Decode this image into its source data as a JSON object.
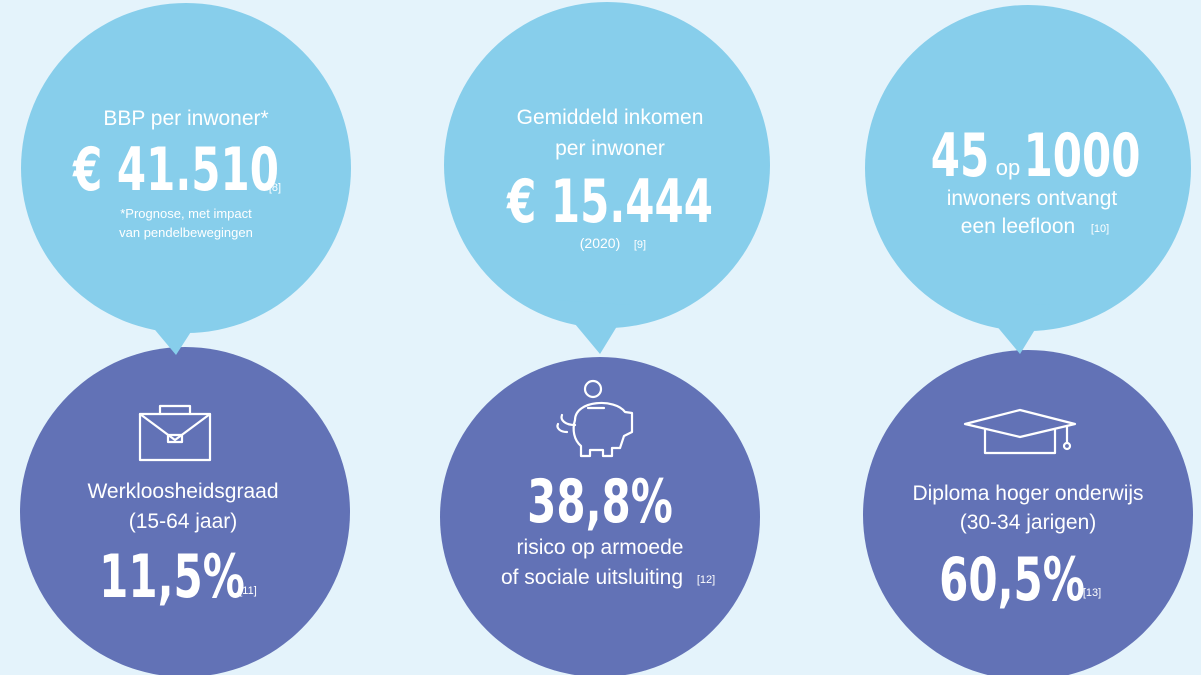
{
  "top": [
    {
      "label": "BBP per inwoner*",
      "value": "€ 41.510",
      "ref": "[8]",
      "note_lines": [
        "*Prognose, met impact",
        "van pendelbewegingen"
      ]
    },
    {
      "label_lines": [
        "Gemiddeld inkomen",
        "per inwoner"
      ],
      "value": "€ 15.444",
      "note": "(2020)",
      "ref": "[9]"
    },
    {
      "value_a": "45",
      "joiner": "op",
      "value_b": "1000",
      "label_lines": [
        "inwoners ontvangt",
        "een leefloon"
      ],
      "ref": "[10]"
    }
  ],
  "bottom": [
    {
      "label_lines": [
        "Werkloosheidsgraad",
        "(15-64 jaar)"
      ],
      "value": "11,5%",
      "ref": "[11]"
    },
    {
      "value": "38,8%",
      "label_lines": [
        "risico op armoede",
        "of sociale uitsluiting"
      ],
      "ref": "[12]"
    },
    {
      "label_lines": [
        "Diploma hoger onderwijs",
        "(30-34 jarigen)"
      ],
      "value": "60,5%",
      "ref": "[13]"
    }
  ]
}
